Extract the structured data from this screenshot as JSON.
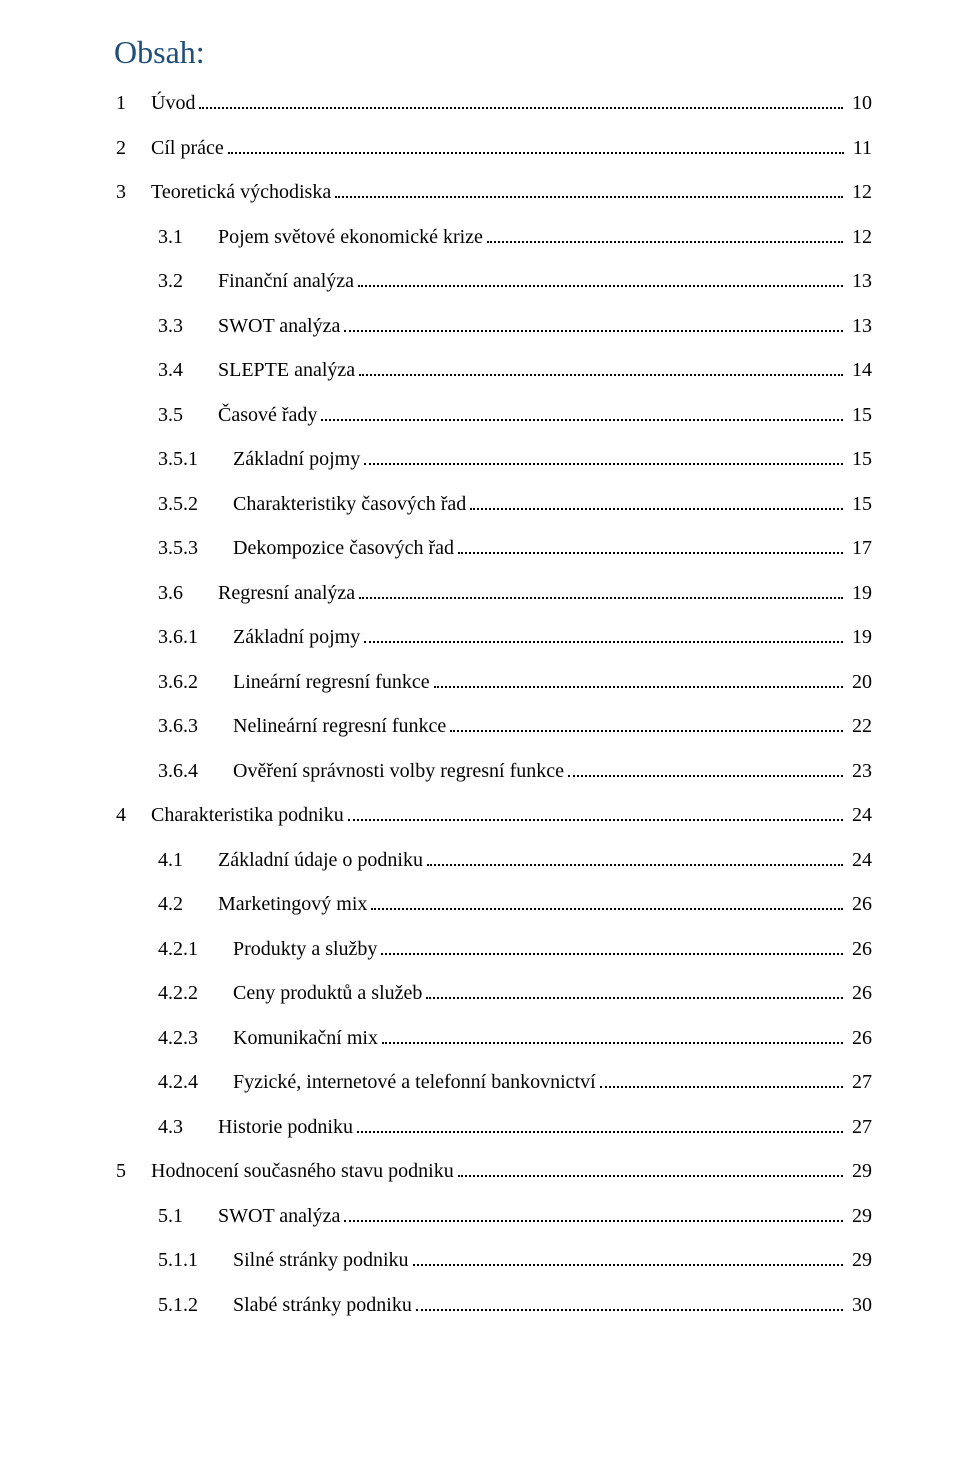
{
  "heading": "Obsah:",
  "colors": {
    "heading_color": "#1f4e79",
    "text_color": "#000000",
    "background": "#ffffff"
  },
  "typography": {
    "heading_fontsize_pt": 24,
    "body_fontsize_pt": 15,
    "font_family": "Times New Roman"
  },
  "indent_widths": {
    "level1_num_chars": 6,
    "level2_num_chars": 10,
    "level3_num_chars": 12
  },
  "entries": [
    {
      "level": 1,
      "num": "1",
      "label": "Úvod",
      "page": "10"
    },
    {
      "level": 1,
      "num": "2",
      "label": "Cíl práce",
      "page": "11"
    },
    {
      "level": 1,
      "num": "3",
      "label": "Teoretická východiska",
      "page": "12"
    },
    {
      "level": 2,
      "num": "3.1",
      "label": "Pojem světové ekonomické krize",
      "page": "12"
    },
    {
      "level": 2,
      "num": "3.2",
      "label": "Finanční analýza",
      "page": "13"
    },
    {
      "level": 2,
      "num": "3.3",
      "label": "SWOT analýza",
      "page": "13"
    },
    {
      "level": 2,
      "num": "3.4",
      "label": "SLEPTE analýza",
      "page": "14"
    },
    {
      "level": 2,
      "num": "3.5",
      "label": "Časové řady",
      "page": "15"
    },
    {
      "level": 3,
      "num": "3.5.1",
      "label": "Základní pojmy",
      "page": "15"
    },
    {
      "level": 3,
      "num": "3.5.2",
      "label": "Charakteristiky časových řad",
      "page": "15"
    },
    {
      "level": 3,
      "num": "3.5.3",
      "label": "Dekompozice časových řad",
      "page": "17"
    },
    {
      "level": 2,
      "num": "3.6",
      "label": "Regresní analýza",
      "page": "19"
    },
    {
      "level": 3,
      "num": "3.6.1",
      "label": "Základní pojmy",
      "page": "19"
    },
    {
      "level": 3,
      "num": "3.6.2",
      "label": "Lineární regresní funkce",
      "page": "20"
    },
    {
      "level": 3,
      "num": "3.6.3",
      "label": "Nelineární regresní funkce",
      "page": "22"
    },
    {
      "level": 3,
      "num": "3.6.4",
      "label": "Ověření správnosti volby regresní funkce",
      "page": "23"
    },
    {
      "level": 1,
      "num": "4",
      "label": "Charakteristika podniku",
      "page": "24"
    },
    {
      "level": 2,
      "num": "4.1",
      "label": "Základní údaje o podniku",
      "page": "24"
    },
    {
      "level": 2,
      "num": "4.2",
      "label": "Marketingový mix",
      "page": "26"
    },
    {
      "level": 3,
      "num": "4.2.1",
      "label": "Produkty a služby",
      "page": "26"
    },
    {
      "level": 3,
      "num": "4.2.2",
      "label": "Ceny produktů a služeb",
      "page": "26"
    },
    {
      "level": 3,
      "num": "4.2.3",
      "label": "Komunikační mix",
      "page": "26"
    },
    {
      "level": 3,
      "num": "4.2.4",
      "label": "Fyzické, internetové a telefonní bankovnictví",
      "page": "27"
    },
    {
      "level": 2,
      "num": "4.3",
      "label": "Historie podniku",
      "page": "27"
    },
    {
      "level": 1,
      "num": "5",
      "label": "Hodnocení současného stavu podniku",
      "page": "29"
    },
    {
      "level": 2,
      "num": "5.1",
      "label": "SWOT analýza",
      "page": "29"
    },
    {
      "level": 3,
      "num": "5.1.1",
      "label": "Silné stránky podniku",
      "page": "29"
    },
    {
      "level": 3,
      "num": "5.1.2",
      "label": "Slabé stránky podniku",
      "page": "30"
    }
  ]
}
